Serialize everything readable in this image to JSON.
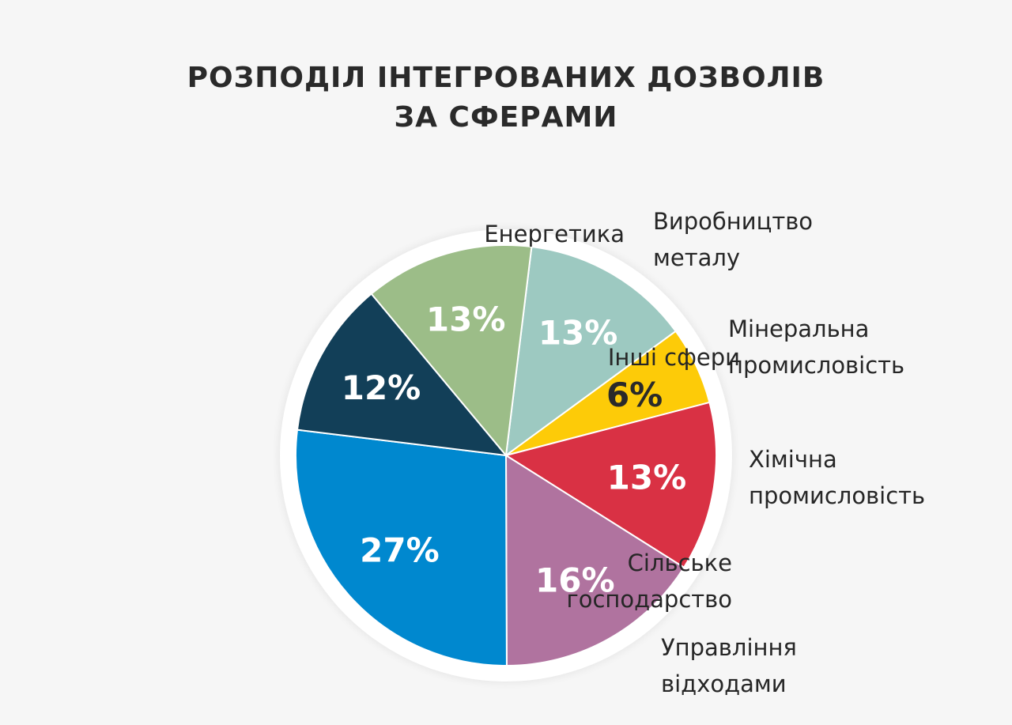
{
  "chart_data": {
    "type": "pie",
    "title": [
      "РОЗПОДІЛ ІНТЕГРОВАНИХ ДОЗВОЛІВ",
      "ЗА СФЕРАМИ"
    ],
    "slices": [
      {
        "label": [
          "Виробництво",
          "металу"
        ],
        "value": 13,
        "display": "13%",
        "color": "#9dc9c1",
        "text_color": "#ffffff"
      },
      {
        "label": [
          "Мінеральна",
          "промисловість"
        ],
        "value": 6,
        "display": "6%",
        "color": "#fdcb08",
        "text_color": "#2a2a2a"
      },
      {
        "label": [
          "Хімічна",
          "промисловість"
        ],
        "value": 13,
        "display": "13%",
        "color": "#d93144",
        "text_color": "#ffffff"
      },
      {
        "label": [
          "Управління",
          "відходами"
        ],
        "value": 16,
        "display": "16%",
        "color": "#b0739f",
        "text_color": "#ffffff"
      },
      {
        "label": [
          "Сільське",
          "господарство"
        ],
        "value": 27,
        "display": "27%",
        "color": "#0088cf",
        "text_color": "#ffffff"
      },
      {
        "label": [
          "Інші сфери"
        ],
        "value": 12,
        "display": "12%",
        "color": "#123f58",
        "text_color": "#ffffff"
      },
      {
        "label": [
          "Енергетика"
        ],
        "value": 13,
        "display": "13%",
        "color": "#9cbd88",
        "text_color": "#ffffff"
      }
    ],
    "legend": "none"
  }
}
